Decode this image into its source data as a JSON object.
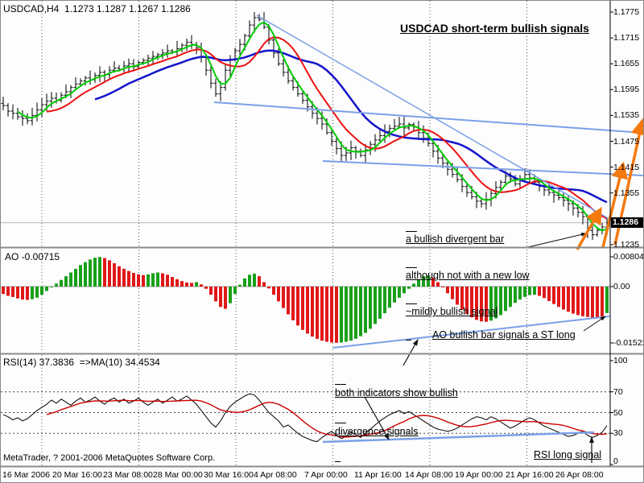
{
  "window": {
    "symbol_line": "USDCAD,H4  1.1273 1.1287 1.1267 1.1286",
    "footer": "MetaTrader, ? 2001-2006 MetaQuotes Software Corp."
  },
  "annotations": {
    "title": "USDCAD short-term bullish signals",
    "divergent_line1": "a bullish divergent bar",
    "divergent_line2": "although not with a new low",
    "divergent_line3": "~mildly bullish signal",
    "ao_signal": "AO bullish bar signals a ST long",
    "rsi_div_line1": "both indicators show bullish",
    "rsi_div_line2": "divergence signals",
    "rsi_long": "RSI long signal"
  },
  "price_tag": "1.1286",
  "colors": {
    "background": "#fdfdfd",
    "bar_black": "#000000",
    "ma_fast_green": "#00cc00",
    "ma_mid_red": "#ee1111",
    "ma_slow_blue": "#1414cc",
    "ao_up_green": "#18a018",
    "ao_down_red": "#e01818",
    "rsi_line": "#000000",
    "rsi_ma_red": "#cc0000",
    "trend_blue": "#7aa0e8",
    "arrow_orange": "#f4790f",
    "current_price_line": "#b8b8b8"
  },
  "x_axis": {
    "labels": [
      "16 Mar 2006",
      "20 Mar 16:00",
      "23 Mar 08:00",
      "28 Mar 00:00",
      "30 Mar 16:00",
      "4 Apr 08:00",
      "7 Apr 00:00",
      "11 Apr 16:00",
      "14 Apr 08:00",
      "19 Apr 00:00",
      "21 Apr 16:00",
      "26 Apr 08:00"
    ]
  },
  "chart_data": [
    {
      "panel": "price",
      "type": "candlestick",
      "label": "USDCAD,H4  1.1273 1.1287 1.1267 1.1286",
      "open_high_low_close_header": [
        1.1273,
        1.1287,
        1.1267,
        1.1286
      ],
      "y_ticks": [
        "1.1775",
        "1.1715",
        "1.1655",
        "1.1595",
        "1.1535",
        "1.1475",
        "1.1415",
        "1.1355",
        "1.1235"
      ],
      "ylim": [
        1.1235,
        1.1775
      ],
      "current_price": 1.1286,
      "closes": [
        1.1558,
        1.1545,
        1.154,
        1.1532,
        1.1528,
        1.1523,
        1.1535,
        1.1548,
        1.156,
        1.1568,
        1.1575,
        1.157,
        1.1582,
        1.159,
        1.16,
        1.1608,
        1.1615,
        1.1622,
        1.1618,
        1.1628,
        1.1635,
        1.163,
        1.164,
        1.1645,
        1.1642,
        1.165,
        1.1655,
        1.1648,
        1.1658,
        1.1663,
        1.1668,
        1.1672,
        1.1676,
        1.168,
        1.1685,
        1.1682,
        1.169,
        1.1698,
        1.1705,
        1.17,
        1.1692,
        1.167,
        1.164,
        1.161,
        1.1585,
        1.16,
        1.164,
        1.1665,
        1.1685,
        1.17,
        1.172,
        1.1745,
        1.1762,
        1.1758,
        1.174,
        1.171,
        1.168,
        1.1655,
        1.1635,
        1.1615,
        1.16,
        1.1585,
        1.157,
        1.1555,
        1.154,
        1.1528,
        1.1515,
        1.1495,
        1.1475,
        1.1458,
        1.1442,
        1.1448,
        1.146,
        1.1452,
        1.1442,
        1.1455,
        1.1468,
        1.1478,
        1.1488,
        1.1498,
        1.1505,
        1.151,
        1.1515,
        1.1506,
        1.1514,
        1.1508,
        1.1495,
        1.1482,
        1.147,
        1.1452,
        1.1436,
        1.1424,
        1.141,
        1.1398,
        1.1386,
        1.137,
        1.1356,
        1.1346,
        1.1336,
        1.133,
        1.134,
        1.1354,
        1.1368,
        1.138,
        1.1394,
        1.1388,
        1.1376,
        1.1388,
        1.1398,
        1.139,
        1.138,
        1.137,
        1.1362,
        1.1356,
        1.135,
        1.1344,
        1.1338,
        1.133,
        1.132,
        1.131,
        1.13,
        1.1268,
        1.1258,
        1.1268,
        1.1276,
        1.1286
      ],
      "special_bars": {
        "peak_index": 52,
        "peak_high": 1.1775,
        "divergent_bar_index": 121,
        "divergent_bar_low": 1.125,
        "next_bar_low": 1.1246
      },
      "moving_averages": [
        {
          "name": "fast",
          "period": 4,
          "color": "#00cc00"
        },
        {
          "name": "mid",
          "period": 10,
          "color": "#ee1111"
        },
        {
          "name": "slow",
          "period": 20,
          "color": "#1414cc"
        }
      ]
    },
    {
      "panel": "ao",
      "type": "bar",
      "label": "AO -0.00715",
      "current_value": -0.00715,
      "y_ticks": [
        "0.00804",
        "0.00",
        "-0.01522"
      ],
      "values": [
        -0.002,
        -0.0025,
        -0.0028,
        -0.0032,
        -0.0035,
        -0.0036,
        -0.0034,
        -0.003,
        -0.0022,
        -0.0012,
        -0.0002,
        0.0008,
        0.0018,
        0.0028,
        0.0038,
        0.0048,
        0.0058,
        0.0066,
        0.0073,
        0.0078,
        0.008,
        0.0077,
        0.0071,
        0.0063,
        0.0055,
        0.0048,
        0.0042,
        0.0037,
        0.0033,
        0.0031,
        0.0033,
        0.0036,
        0.0038,
        0.0036,
        0.0032,
        0.0026,
        0.002,
        0.0015,
        0.0011,
        0.001,
        0.0012,
        0.0006,
        -0.0006,
        -0.0022,
        -0.004,
        -0.0055,
        -0.006,
        -0.0045,
        -0.002,
        0.0005,
        0.0022,
        0.0032,
        0.0035,
        0.0028,
        0.0012,
        -0.0005,
        -0.0022,
        -0.004,
        -0.0058,
        -0.0075,
        -0.0091,
        -0.0105,
        -0.0117,
        -0.0127,
        -0.0135,
        -0.0141,
        -0.0146,
        -0.0149,
        -0.0151,
        -0.0152,
        -0.0151,
        -0.0149,
        -0.0146,
        -0.0141,
        -0.0134,
        -0.0125,
        -0.0114,
        -0.0101,
        -0.0087,
        -0.0072,
        -0.0057,
        -0.0043,
        -0.003,
        -0.0018,
        -0.0006,
        0.0008,
        0.002,
        0.0028,
        0.003,
        0.0024,
        0.0012,
        -0.0002,
        -0.0018,
        -0.0034,
        -0.0049,
        -0.0062,
        -0.0074,
        -0.0083,
        -0.009,
        -0.0094,
        -0.0095,
        -0.0092,
        -0.0086,
        -0.0077,
        -0.0066,
        -0.0055,
        -0.0044,
        -0.0035,
        -0.0028,
        -0.0023,
        -0.0022,
        -0.0025,
        -0.0031,
        -0.0039,
        -0.0047,
        -0.0055,
        -0.0062,
        -0.0068,
        -0.0073,
        -0.0077,
        -0.008,
        -0.0082,
        -0.0084,
        -0.0086,
        -0.0088,
        -0.00715
      ]
    },
    {
      "panel": "rsi",
      "type": "line",
      "label": "RSI(14) 37.3836  =>MA(10) 34.4534",
      "rsi_value": 37.3836,
      "ma_value": 34.4534,
      "ma_period": 10,
      "y_ticks": [
        "100",
        "70",
        "50",
        "30",
        "0"
      ],
      "levels": [
        70,
        50,
        30
      ],
      "values": [
        48,
        46,
        43,
        45,
        42,
        44,
        48,
        52,
        55,
        58,
        62,
        59,
        63,
        60,
        57,
        61,
        64,
        60,
        62,
        65,
        61,
        58,
        62,
        64,
        60,
        63,
        59,
        61,
        64,
        60,
        57,
        60,
        63,
        59,
        62,
        65,
        61,
        63,
        66,
        62,
        58,
        52,
        46,
        40,
        36,
        42,
        50,
        56,
        60,
        63,
        66,
        68,
        67,
        62,
        56,
        50,
        46,
        42,
        36,
        38,
        34,
        30,
        27,
        25,
        23,
        22,
        26,
        29,
        32,
        28,
        25,
        27,
        31,
        29,
        26,
        30,
        34,
        38,
        42,
        45,
        48,
        50,
        52,
        49,
        51,
        48,
        45,
        42,
        39,
        36,
        34,
        33,
        32,
        33,
        35,
        38,
        41,
        44,
        46,
        45,
        43,
        46,
        44,
        41,
        38,
        35,
        37,
        40,
        43,
        45,
        43,
        40,
        37,
        35,
        33,
        31,
        29,
        27,
        28,
        30,
        32,
        28,
        26,
        28,
        31,
        37.4
      ]
    }
  ],
  "overlays": {
    "price_trend_lines": [
      [
        318,
        18,
        756,
        271
      ],
      [
        265,
        126,
        798,
        164
      ],
      [
        400,
        199,
        798,
        217
      ]
    ],
    "orange_arrows": [
      [
        716,
        309,
        745,
        259
      ],
      [
        748,
        306,
        773,
        203
      ],
      [
        763,
        303,
        797,
        149
      ]
    ],
    "price_black_arrow": [
      655,
      306,
      727,
      289
    ],
    "ao_trend_line": [
      413,
      431,
      756,
      392
    ],
    "ao_black_arrow": [
      724,
      410,
      751,
      392
    ],
    "rsi_trend_line": [
      400,
      548,
      737,
      536
    ],
    "rsi_to_ao_arrow": [
      500,
      453,
      518,
      421
    ],
    "rsi_div_arrow": [
      452,
      492,
      482,
      545
    ],
    "rsi_long_arrow": [
      734,
      574,
      734,
      542
    ]
  }
}
